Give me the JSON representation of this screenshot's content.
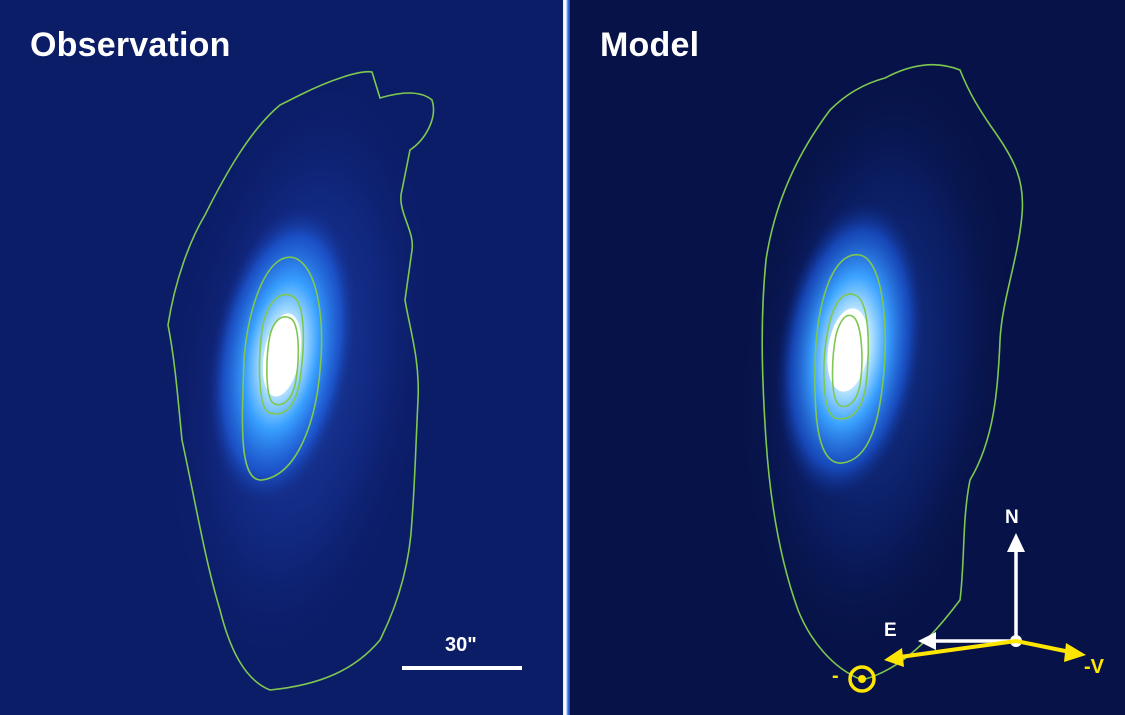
{
  "panels": {
    "observation": {
      "title": "Observation",
      "scalebar_label": "30\""
    },
    "model": {
      "title": "Model",
      "compass": {
        "north": "N",
        "east": "E"
      },
      "velocity_label": "-V",
      "sun_label": "-"
    }
  },
  "colors": {
    "obs_background": "#0c1d68",
    "model_background": "#071348",
    "contour": "#7ec850",
    "galaxy_core": "#ffffff",
    "galaxy_glow": "#2f86ff",
    "arrow_compass": "#ffffff",
    "arrow_velocity": "#ffe600"
  }
}
